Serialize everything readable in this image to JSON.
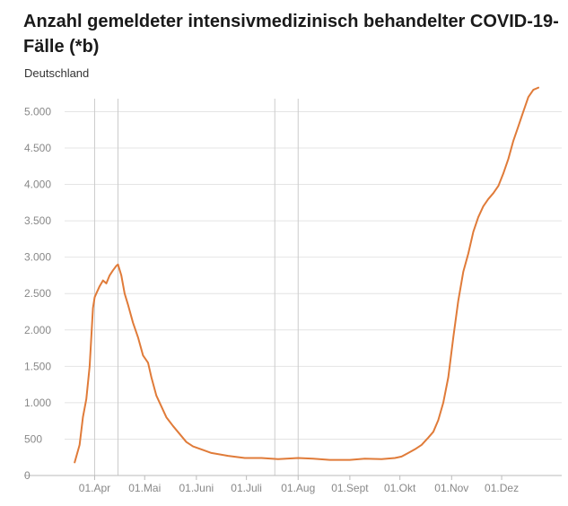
{
  "title": "Anzahl gemeldeter intensivmedizinisch behandelter COVID-19-Fälle (*b)",
  "subtitle": "Deutschland",
  "colors": {
    "line": "#e07b39",
    "grid": "#e4e4e4",
    "refline": "#cccccc",
    "axis": "#bbbbbb",
    "ticks": "#888888"
  },
  "chart_data": {
    "type": "line",
    "title": "Anzahl gemeldeter intensivmedizinisch behandelter COVID-19-Fälle (*b)",
    "subtitle": "Deutschland",
    "xlabel": "",
    "ylabel": "",
    "ylim": [
      0,
      5400
    ],
    "grid": true,
    "legend": "none",
    "y_ticks": [
      0,
      500,
      1000,
      1500,
      2000,
      2500,
      3000,
      3500,
      4000,
      4500,
      5000
    ],
    "y_tick_labels": [
      "0",
      "500",
      "1.000",
      "1.500",
      "2.000",
      "2.500",
      "3.000",
      "3.500",
      "4.000",
      "4.500",
      "5.000"
    ],
    "x_tick_labels": [
      "01.Apr",
      "01.Mai",
      "01.Juni",
      "01.Juli",
      "01.Aug",
      "01.Sept",
      "01.Okt",
      "01.Nov",
      "01.Dez"
    ],
    "x_tick_dates": [
      "2020-04-01",
      "2020-05-01",
      "2020-06-01",
      "2020-07-01",
      "2020-08-01",
      "2020-09-01",
      "2020-10-01",
      "2020-11-01",
      "2020-12-01"
    ],
    "x_range": [
      "2020-03-14",
      "2021-01-06"
    ],
    "reference_lines": [
      "2020-04-01",
      "2020-04-15",
      "2020-07-18",
      "2020-08-01"
    ],
    "series": [
      {
        "x": [
          "2020-03-20",
          "2020-03-23",
          "2020-03-25",
          "2020-03-27",
          "2020-03-29",
          "2020-03-31",
          "2020-04-01",
          "2020-04-02",
          "2020-04-04",
          "2020-04-06",
          "2020-04-08",
          "2020-04-10",
          "2020-04-12",
          "2020-04-14",
          "2020-04-15",
          "2020-04-17",
          "2020-04-19",
          "2020-04-21",
          "2020-04-24",
          "2020-04-27",
          "2020-04-30",
          "2020-05-03",
          "2020-05-05",
          "2020-05-08",
          "2020-05-11",
          "2020-05-14",
          "2020-05-18",
          "2020-05-22",
          "2020-05-26",
          "2020-05-30",
          "2020-06-05",
          "2020-06-10",
          "2020-06-20",
          "2020-06-30",
          "2020-07-10",
          "2020-07-20",
          "2020-08-01",
          "2020-08-10",
          "2020-08-20",
          "2020-09-01",
          "2020-09-10",
          "2020-09-20",
          "2020-09-28",
          "2020-10-02",
          "2020-10-06",
          "2020-10-10",
          "2020-10-14",
          "2020-10-18",
          "2020-10-21",
          "2020-10-24",
          "2020-10-27",
          "2020-10-30",
          "2020-11-02",
          "2020-11-05",
          "2020-11-08",
          "2020-11-11",
          "2020-11-14",
          "2020-11-17",
          "2020-11-20",
          "2020-11-23",
          "2020-11-26",
          "2020-11-29",
          "2020-12-02",
          "2020-12-05",
          "2020-12-08",
          "2020-12-11",
          "2020-12-14",
          "2020-12-17",
          "2020-12-20",
          "2020-12-22",
          "2020-12-23"
        ],
        "y": [
          180,
          420,
          800,
          1050,
          1500,
          2300,
          2450,
          2500,
          2600,
          2680,
          2640,
          2750,
          2820,
          2880,
          2900,
          2750,
          2500,
          2350,
          2100,
          1900,
          1650,
          1550,
          1350,
          1100,
          950,
          800,
          680,
          570,
          460,
          400,
          350,
          310,
          270,
          240,
          240,
          225,
          240,
          230,
          215,
          215,
          230,
          225,
          240,
          260,
          310,
          360,
          420,
          520,
          600,
          760,
          1000,
          1350,
          1900,
          2400,
          2800,
          3050,
          3350,
          3550,
          3700,
          3800,
          3880,
          3980,
          4150,
          4350,
          4600,
          4800,
          5000,
          5200,
          5300,
          5320,
          5330
        ]
      }
    ]
  }
}
